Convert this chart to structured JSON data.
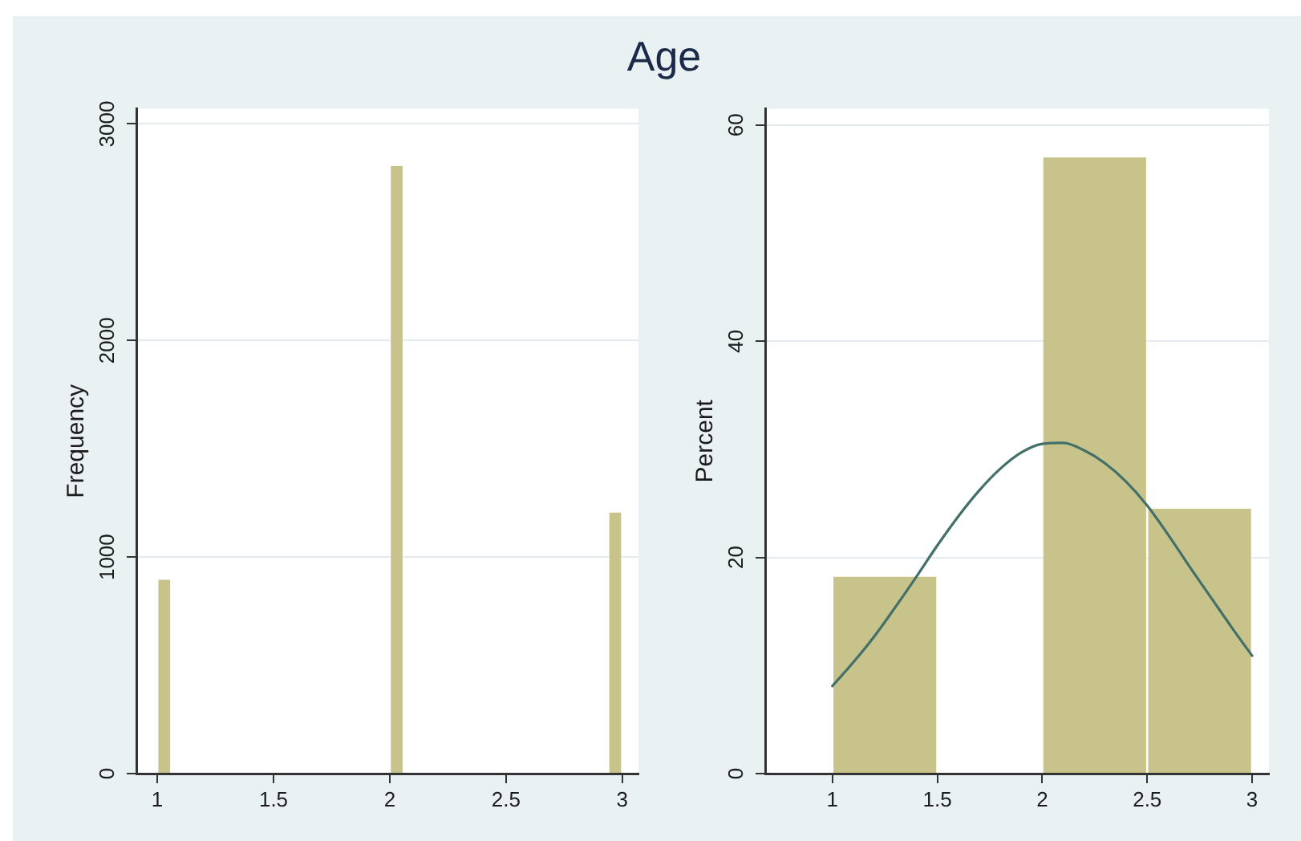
{
  "chart_data": [
    {
      "type": "histogram",
      "title": "Age",
      "ylabel": "Frequency",
      "bins": [
        1,
        1.06,
        2,
        2.06,
        2.94,
        3
      ],
      "values": [
        900,
        null,
        2810,
        null,
        1210
      ],
      "color": "#c8c38b",
      "xlim": [
        0.91,
        3.07
      ],
      "ylim": [
        0,
        3070
      ],
      "xticks": [
        1,
        1.5,
        2,
        2.5,
        3
      ],
      "yticks": [
        0,
        1000,
        2000,
        3000
      ],
      "grid": "y"
    },
    {
      "type": "histogram",
      "ylabel": "Percent",
      "bins": [
        1,
        1.5,
        2,
        2.5,
        3
      ],
      "series": [
        {
          "color": "#c8c38b",
          "values": [
            18.3,
            null,
            57.1,
            24.6
          ]
        },
        {
          "type": "line",
          "color": "#437069",
          "x": [
            1,
            1.1,
            1.2,
            1.3,
            1.4,
            1.5,
            1.6,
            1.7,
            1.8,
            1.9,
            2,
            2.1,
            2.2,
            2.3,
            2.4,
            2.5,
            2.6,
            2.7,
            2.8,
            2.9,
            3
          ],
          "values": [
            8.1,
            10.3,
            12.7,
            15.4,
            18.2,
            21.1,
            23.8,
            26.2,
            28.2,
            29.7,
            30.5,
            30.6,
            29.9,
            28.7,
            27.0,
            24.8,
            22.1,
            19.2,
            16.4,
            13.6,
            10.9
          ]
        }
      ],
      "xlim": [
        0.68,
        3.08
      ],
      "ylim": [
        0,
        61.5
      ],
      "xticks": [
        1,
        1.5,
        2,
        2.5,
        3
      ],
      "yticks": [
        0,
        20,
        40,
        60
      ],
      "grid": "y"
    }
  ]
}
